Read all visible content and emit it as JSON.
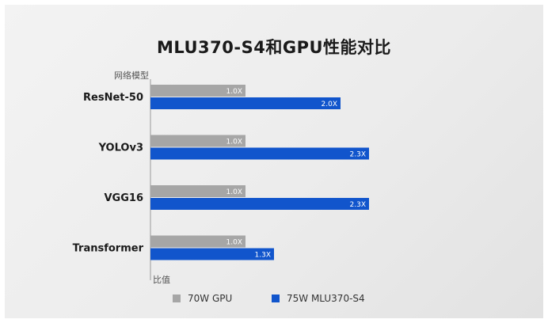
{
  "chart_data": {
    "type": "bar",
    "orientation": "horizontal",
    "title": "MLU370-S4和GPU性能对比",
    "ylabel": "网络模型",
    "xlabel": "比值",
    "categories": [
      "ResNet-50",
      "YOLOv3",
      "VGG16",
      "Transformer"
    ],
    "series": [
      {
        "name": "70W GPU",
        "values": [
          1.0,
          1.0,
          1.0,
          1.0
        ],
        "labels": [
          "1.0X",
          "1.0X",
          "1.0X",
          "1.0X"
        ],
        "color": "#a6a6a6"
      },
      {
        "name": "75W MLU370-S4",
        "values": [
          2.0,
          2.3,
          2.3,
          1.3
        ],
        "labels": [
          "2.0X",
          "2.3X",
          "2.3X",
          "1.3X"
        ],
        "color": "#1155cc"
      }
    ],
    "xlim": [
      0,
      2.3
    ],
    "grid": false,
    "legend_position": "bottom"
  }
}
